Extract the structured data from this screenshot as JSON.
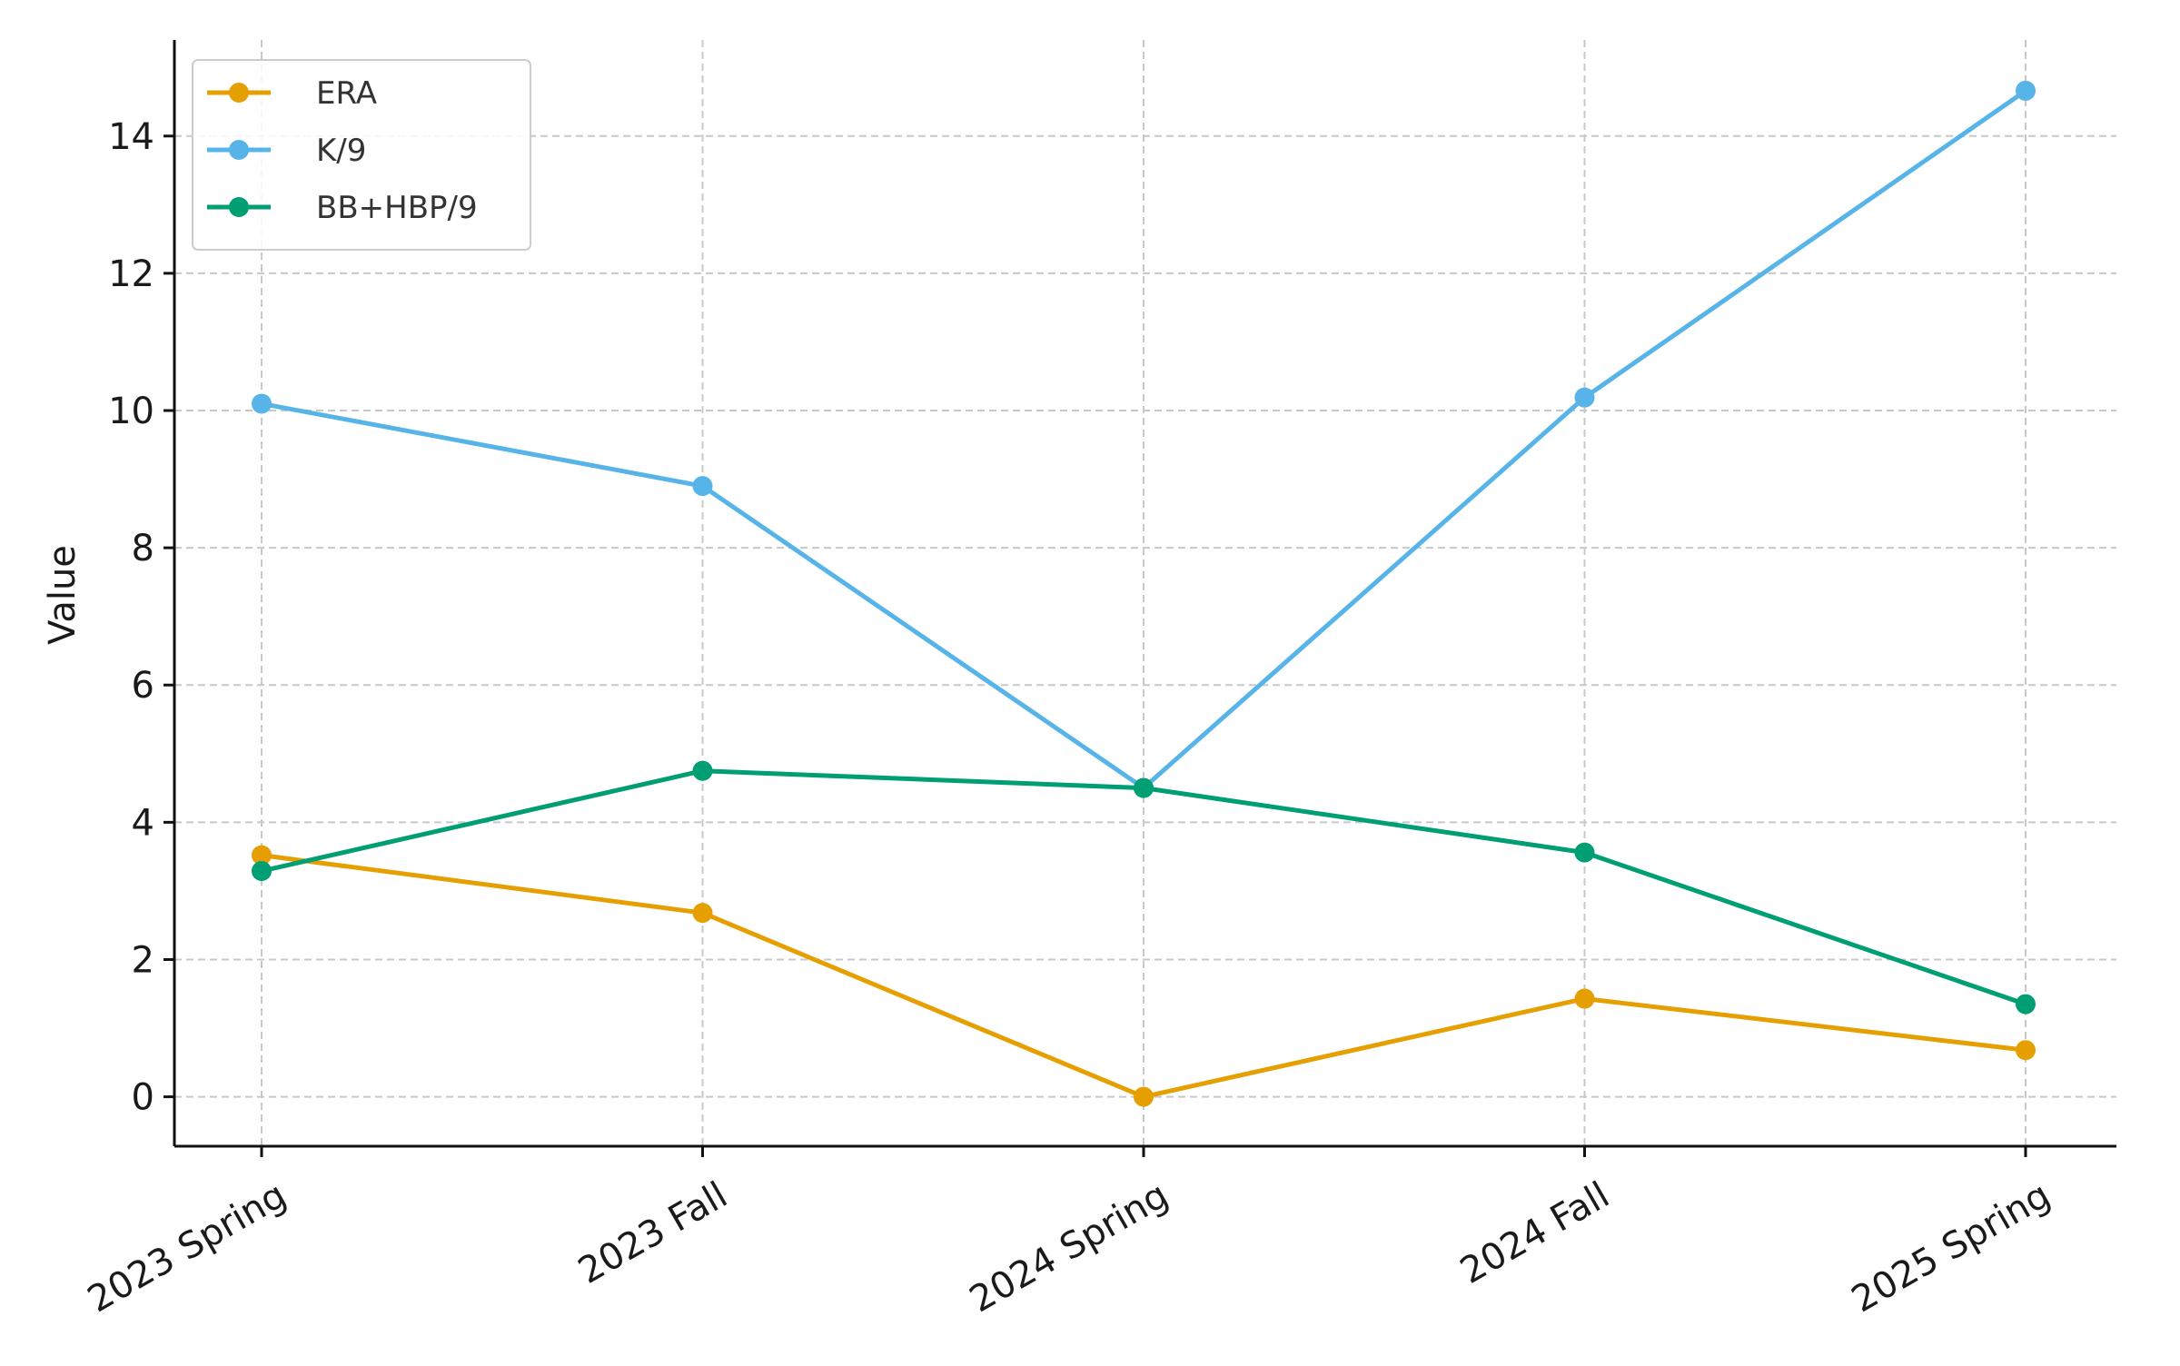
{
  "chart_data": {
    "type": "line",
    "title": "",
    "xlabel": "",
    "ylabel": "Value",
    "categories": [
      "2023 Spring",
      "2023 Fall",
      "2024 Spring",
      "2024 Fall",
      "2025 Spring"
    ],
    "ylim": [
      -0.72,
      15.4
    ],
    "yticks": [
      0,
      2,
      4,
      6,
      8,
      10,
      12,
      14
    ],
    "grid": true,
    "legend_position": "top-left",
    "series": [
      {
        "name": "ERA",
        "color": "#E69F00",
        "values": [
          3.52,
          2.68,
          0.0,
          1.43,
          0.68
        ]
      },
      {
        "name": "K/9",
        "color": "#56B4E9",
        "values": [
          10.1,
          8.9,
          4.5,
          10.19,
          14.66
        ]
      },
      {
        "name": "BB+HBP/9",
        "color": "#009E73",
        "values": [
          3.29,
          4.75,
          4.5,
          3.56,
          1.35
        ]
      }
    ]
  }
}
